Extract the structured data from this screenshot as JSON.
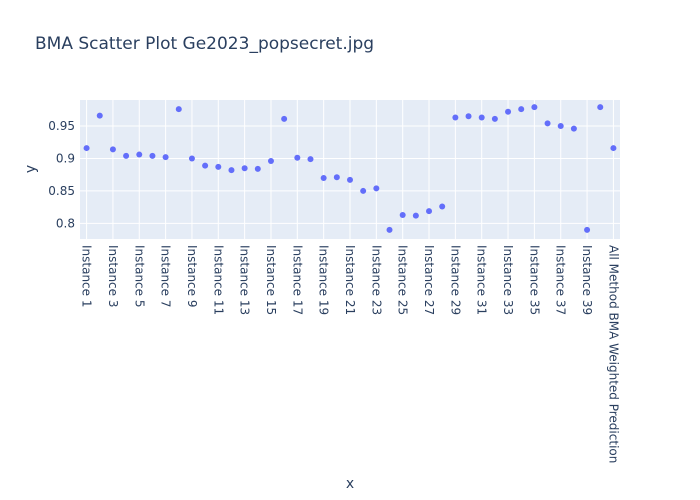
{
  "chart_data": {
    "type": "scatter",
    "title": "BMA Scatter Plot Ge2023_popsecret.jpg",
    "xlabel": "x",
    "ylabel": "y",
    "ylim": [
      0.776,
      0.99
    ],
    "yticks": [
      0.8,
      0.85,
      0.9,
      0.95
    ],
    "ytick_labels": [
      "0.8",
      "0.85",
      "0.9",
      "0.95"
    ],
    "grid": true,
    "marker_color": "#636efa",
    "plot_bg": "#e5ecf6",
    "categories": [
      "Instance 1",
      "Instance 2",
      "Instance 3",
      "Instance 4",
      "Instance 5",
      "Instance 6",
      "Instance 7",
      "Instance 8",
      "Instance 9",
      "Instance 10",
      "Instance 11",
      "Instance 12",
      "Instance 13",
      "Instance 14",
      "Instance 15",
      "Instance 16",
      "Instance 17",
      "Instance 18",
      "Instance 19",
      "Instance 20",
      "Instance 21",
      "Instance 22",
      "Instance 23",
      "Instance 24",
      "Instance 25",
      "Instance 26",
      "Instance 27",
      "Instance 28",
      "Instance 29",
      "Instance 30",
      "Instance 31",
      "Instance 32",
      "Instance 33",
      "Instance 34",
      "Instance 35",
      "Instance 36",
      "Instance 37",
      "Instance 38",
      "Instance 39",
      "Instance 40",
      "All Method BMA Weighted Prediction"
    ],
    "tick_labels_shown": [
      "Instance 1",
      "Instance 3",
      "Instance 5",
      "Instance 7",
      "Instance 9",
      "Instance 11",
      "Instance 13",
      "Instance 15",
      "Instance 17",
      "Instance 19",
      "Instance 21",
      "Instance 23",
      "Instance 25",
      "Instance 27",
      "Instance 29",
      "Instance 31",
      "Instance 33",
      "Instance 35",
      "Instance 37",
      "Instance 39",
      "All Method BMA Weighted Prediction"
    ],
    "values": [
      0.916,
      0.966,
      0.914,
      0.904,
      0.906,
      0.904,
      0.902,
      0.976,
      0.9,
      0.889,
      0.887,
      0.882,
      0.885,
      0.884,
      0.896,
      0.961,
      0.901,
      0.899,
      0.87,
      0.871,
      0.867,
      0.85,
      0.854,
      0.79,
      0.813,
      0.812,
      0.819,
      0.826,
      0.963,
      0.965,
      0.963,
      0.961,
      0.972,
      0.976,
      0.979,
      0.954,
      0.95,
      0.946,
      0.79,
      0.979,
      0.916
    ]
  }
}
